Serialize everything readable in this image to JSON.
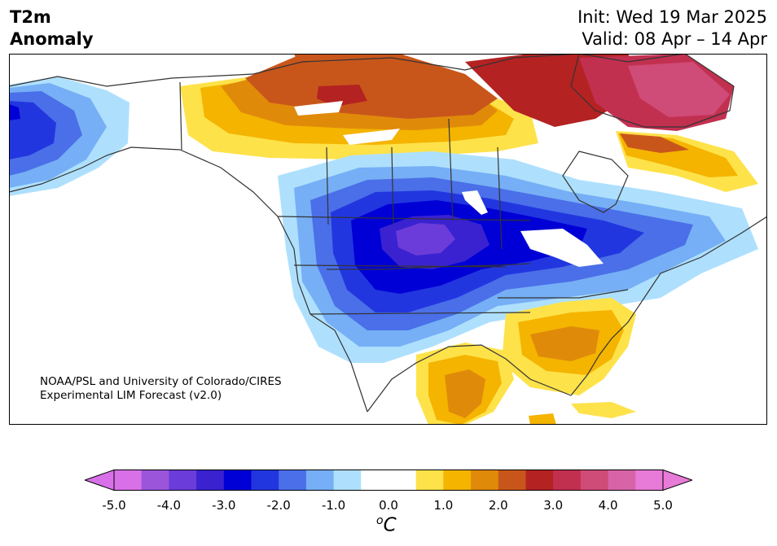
{
  "title": {
    "left_line1": "T2m",
    "left_line2": "Anomaly",
    "init": "Init: Wed 19 Mar 2025",
    "valid": "Valid: 08 Apr – 14 Apr"
  },
  "credit": {
    "line1": "NOAA/PSL and University of Colorado/CIRES",
    "line2": "Experimental LIM Forecast (v2.0)"
  },
  "colorbar": {
    "unit_base": "C",
    "unit_sup": "o",
    "ticks": [
      "-5.0",
      "-4.0",
      "-3.0",
      "-2.0",
      "-1.0",
      "0.0",
      "1.0",
      "2.0",
      "3.0",
      "4.0",
      "5.0"
    ],
    "range": [
      -5.0,
      5.0
    ],
    "colors": [
      "#d870e8",
      "#9b55db",
      "#6b3cd9",
      "#3a22d0",
      "#0000d6",
      "#2236e0",
      "#4a6fe8",
      "#76aff5",
      "#aee0fd",
      "#ffffff",
      "#ffffff",
      "#fee24a",
      "#f4b400",
      "#e08a0a",
      "#c8561a",
      "#b42222",
      "#c23050",
      "#cf4b78",
      "#d864a8",
      "#e87ad8"
    ],
    "extend_low_color": "#d870e8",
    "extend_high_color": "#e87ad8"
  },
  "map": {
    "region": "North America",
    "variable": "2m temperature anomaly"
  }
}
